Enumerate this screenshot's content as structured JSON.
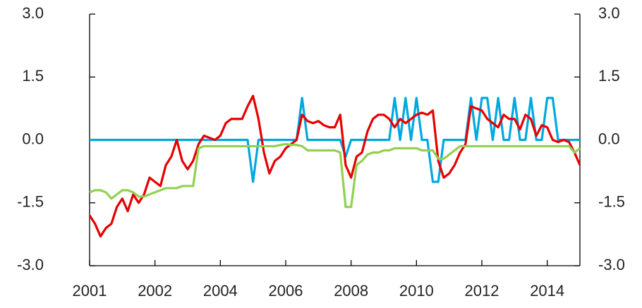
{
  "chart_data": {
    "type": "line",
    "categories": [
      "2001",
      null,
      null,
      null,
      null,
      null,
      null,
      null,
      null,
      null,
      null,
      null,
      "2002",
      null,
      null,
      null,
      null,
      null,
      null,
      null,
      null,
      null,
      null,
      null,
      "2004",
      null,
      null,
      null,
      null,
      null,
      null,
      null,
      null,
      null,
      null,
      null,
      "2006",
      null,
      null,
      null,
      null,
      null,
      null,
      null,
      null,
      null,
      null,
      null,
      "2008",
      null,
      null,
      null,
      null,
      null,
      null,
      null,
      null,
      null,
      null,
      null,
      "2010",
      null,
      null,
      null,
      null,
      null,
      null,
      null,
      null,
      null,
      null,
      null,
      "2012",
      null,
      null,
      null,
      null,
      null,
      null,
      null,
      null,
      null,
      null,
      null,
      "2014",
      null,
      null,
      null,
      null,
      null,
      null
    ],
    "series": [
      {
        "color": "#00a8e0",
        "values": [
          0,
          0,
          0,
          0,
          0,
          0,
          0,
          0,
          0,
          0,
          0,
          0,
          0,
          0,
          0,
          0,
          0,
          0,
          0,
          0,
          0,
          0,
          0,
          0,
          0,
          0,
          0,
          0,
          0,
          0,
          -1,
          0,
          0,
          0,
          0,
          0,
          0,
          0,
          0,
          1,
          0,
          0,
          0,
          0,
          0,
          0,
          0,
          -0.4,
          0,
          0,
          0,
          0,
          0,
          0,
          0,
          0,
          1,
          0,
          1,
          0,
          1,
          0,
          0,
          -1,
          -1,
          0,
          0,
          0,
          0,
          0,
          1,
          0,
          1,
          1,
          0,
          1,
          0,
          0,
          1,
          0,
          0,
          1,
          0,
          0,
          1,
          1,
          0,
          0,
          0,
          0,
          0
        ]
      },
      {
        "color": "#e60000",
        "values": [
          -1.8,
          -2.0,
          -2.3,
          -2.1,
          -2.0,
          -1.6,
          -1.4,
          -1.7,
          -1.3,
          -1.5,
          -1.3,
          -0.9,
          -1.0,
          -1.1,
          -0.6,
          -0.4,
          0.0,
          -0.5,
          -0.7,
          -0.5,
          -0.1,
          0.1,
          0.05,
          0.0,
          0.1,
          0.4,
          0.5,
          0.5,
          0.5,
          0.8,
          1.05,
          0.5,
          -0.3,
          -0.8,
          -0.5,
          -0.4,
          -0.2,
          -0.1,
          0.0,
          0.6,
          0.45,
          0.4,
          0.45,
          0.35,
          0.3,
          0.3,
          0.6,
          -0.6,
          -0.9,
          -0.4,
          -0.3,
          0.2,
          0.5,
          0.6,
          0.6,
          0.5,
          0.3,
          0.5,
          0.4,
          0.5,
          0.6,
          0.65,
          0.6,
          0.7,
          -0.5,
          -0.9,
          -0.8,
          -0.6,
          -0.3,
          -0.1,
          0.8,
          0.75,
          0.7,
          0.5,
          0.4,
          0.3,
          0.6,
          0.5,
          0.5,
          0.25,
          0.6,
          0.5,
          0.1,
          0.35,
          0.3,
          0.0,
          -0.05,
          0.0,
          -0.05,
          -0.3,
          -0.6
        ]
      },
      {
        "color": "#92d050",
        "values": [
          -1.25,
          -1.2,
          -1.2,
          -1.25,
          -1.4,
          -1.3,
          -1.2,
          -1.2,
          -1.25,
          -1.35,
          -1.35,
          -1.3,
          -1.25,
          -1.2,
          -1.15,
          -1.15,
          -1.15,
          -1.1,
          -1.1,
          -1.1,
          -0.2,
          -0.15,
          -0.15,
          -0.15,
          -0.15,
          -0.15,
          -0.15,
          -0.15,
          -0.15,
          -0.15,
          -0.15,
          -0.15,
          -0.15,
          -0.15,
          -0.15,
          -0.12,
          -0.1,
          -0.12,
          -0.12,
          -0.15,
          -0.25,
          -0.25,
          -0.25,
          -0.25,
          -0.25,
          -0.25,
          -0.3,
          -1.6,
          -1.6,
          -0.6,
          -0.5,
          -0.35,
          -0.3,
          -0.3,
          -0.25,
          -0.25,
          -0.2,
          -0.2,
          -0.2,
          -0.2,
          -0.2,
          -0.25,
          -0.25,
          -0.25,
          -0.45,
          -0.45,
          -0.35,
          -0.25,
          -0.15,
          -0.15,
          -0.15,
          -0.15,
          -0.15,
          -0.15,
          -0.15,
          -0.15,
          -0.15,
          -0.15,
          -0.15,
          -0.15,
          -0.15,
          -0.15,
          -0.15,
          -0.15,
          -0.15,
          -0.15,
          -0.15,
          -0.15,
          -0.15,
          -0.3,
          -0.2
        ]
      }
    ],
    "ylim": [
      -3,
      3
    ],
    "yticks": [
      {
        "value": -3,
        "label": "-3.0"
      },
      {
        "value": -1.5,
        "label": "-1.5"
      },
      {
        "value": 0,
        "label": "0.0"
      },
      {
        "value": 1.5,
        "label": "1.5"
      },
      {
        "value": 3,
        "label": "3.0"
      }
    ],
    "y2lim": [
      -3,
      3
    ],
    "y2ticks": [
      {
        "value": -3,
        "label": "-3.0"
      },
      {
        "value": -1.5,
        "label": "-1.5"
      },
      {
        "value": 0,
        "label": "0.0"
      },
      {
        "value": 1.5,
        "label": "1.5"
      },
      {
        "value": 3,
        "label": "3.0"
      }
    ]
  }
}
